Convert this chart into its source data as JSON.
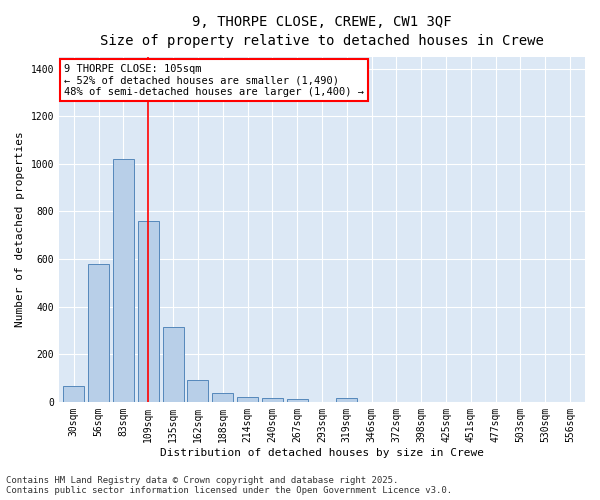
{
  "title_line1": "9, THORPE CLOSE, CREWE, CW1 3QF",
  "title_line2": "Size of property relative to detached houses in Crewe",
  "xlabel": "Distribution of detached houses by size in Crewe",
  "ylabel": "Number of detached properties",
  "categories": [
    "30sqm",
    "56sqm",
    "83sqm",
    "109sqm",
    "135sqm",
    "162sqm",
    "188sqm",
    "214sqm",
    "240sqm",
    "267sqm",
    "293sqm",
    "319sqm",
    "346sqm",
    "372sqm",
    "398sqm",
    "425sqm",
    "451sqm",
    "477sqm",
    "503sqm",
    "530sqm",
    "556sqm"
  ],
  "values": [
    65,
    580,
    1020,
    760,
    315,
    90,
    38,
    22,
    15,
    12,
    0,
    15,
    0,
    0,
    0,
    0,
    0,
    0,
    0,
    0,
    0
  ],
  "bar_color": "#b8cfe8",
  "bar_edge_color": "#5588bb",
  "vline_x_index": 3,
  "vline_color": "red",
  "annotation_text": "9 THORPE CLOSE: 105sqm\n← 52% of detached houses are smaller (1,490)\n48% of semi-detached houses are larger (1,400) →",
  "annotation_box_color": "white",
  "annotation_box_edge_color": "red",
  "ylim": [
    0,
    1450
  ],
  "yticks": [
    0,
    200,
    400,
    600,
    800,
    1000,
    1200,
    1400
  ],
  "background_color": "#dce8f5",
  "grid_color": "white",
  "footer_line1": "Contains HM Land Registry data © Crown copyright and database right 2025.",
  "footer_line2": "Contains public sector information licensed under the Open Government Licence v3.0.",
  "title_fontsize": 10,
  "subtitle_fontsize": 9,
  "axis_label_fontsize": 8,
  "tick_fontsize": 7,
  "annotation_fontsize": 7.5,
  "footer_fontsize": 6.5
}
